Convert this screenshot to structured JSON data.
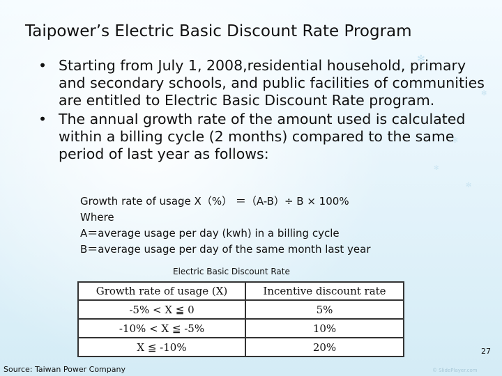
{
  "title": "Taipower’s Electric Basic Discount Rate Program",
  "bullets": [
    {
      "marker": "•",
      "text": "Starting from July 1, 2008,residential household, primary and secondary schools, and public facilities of communities are entitled to Electric Basic Discount Rate program."
    },
    {
      "marker": "•",
      "text": "The annual growth rate of the amount used is calculated within a billing cycle (2 months) compared to the same period of last year as follows:"
    }
  ],
  "formula": {
    "line1": "Growth rate of usage X（%） ＝（A-B）÷ B × 100%",
    "line2": "Where",
    "line3": "A＝average usage per day (kwh) in a billing cycle",
    "line4": "B＝average usage per day of the same month last year"
  },
  "table": {
    "caption": "Electric Basic Discount Rate",
    "headers": [
      "Growth rate of usage (X)",
      "Incentive discount rate"
    ],
    "rows": [
      {
        "range": "-5% < X ≦ 0",
        "discount": "5%"
      },
      {
        "range": "-10% < X ≦ -5%",
        "discount": "10%"
      },
      {
        "range": "X ≦ -10%",
        "discount": "20%"
      }
    ]
  },
  "page_number": "27",
  "source": "Source: Taiwan Power Company",
  "watermark": "© SlidePlayer.com"
}
